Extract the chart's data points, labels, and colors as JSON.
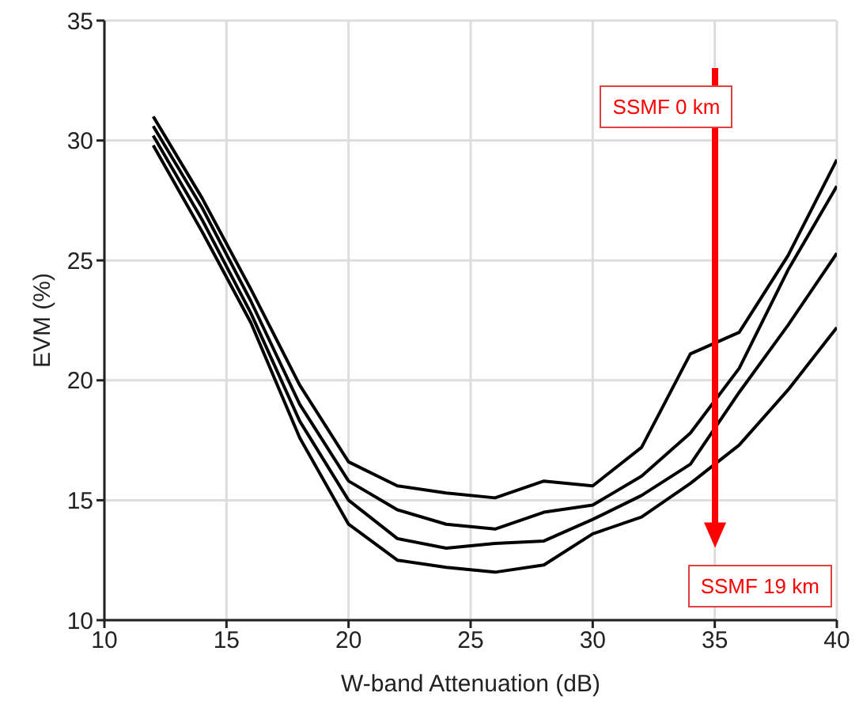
{
  "chart_data": {
    "type": "line",
    "xlabel": "W-band Attenuation (dB)",
    "ylabel": "EVM (%)",
    "x": [
      12,
      14,
      16,
      18,
      20,
      22,
      24,
      26,
      28,
      30,
      32,
      34,
      36,
      38,
      40
    ],
    "series": [
      {
        "color": "#000000",
        "values": [
          31.0,
          27.6,
          23.8,
          19.8,
          16.6,
          15.6,
          15.3,
          15.1,
          15.8,
          15.6,
          17.2,
          21.1,
          22.0,
          25.2,
          29.2
        ]
      },
      {
        "color": "#000000",
        "values": [
          30.6,
          27.2,
          23.3,
          19.0,
          15.8,
          14.6,
          14.0,
          13.8,
          14.5,
          14.8,
          16.0,
          17.8,
          20.5,
          24.6,
          28.1
        ]
      },
      {
        "color": "#000000",
        "values": [
          30.2,
          26.7,
          22.8,
          18.3,
          15.0,
          13.4,
          13.0,
          13.2,
          13.3,
          14.2,
          15.2,
          16.5,
          19.5,
          22.3,
          25.3
        ]
      },
      {
        "color": "#000000",
        "values": [
          29.8,
          26.2,
          22.4,
          17.6,
          14.0,
          12.5,
          12.2,
          12.0,
          12.3,
          13.6,
          14.3,
          15.7,
          17.3,
          19.6,
          22.2
        ]
      }
    ],
    "xlim": [
      10,
      40
    ],
    "xticks": [
      10,
      15,
      20,
      25,
      30,
      35,
      40
    ],
    "ylim": [
      10,
      35
    ],
    "yticks": [
      10,
      15,
      20,
      25,
      30,
      35
    ],
    "grid": true,
    "marker": "none",
    "line_style": "solid",
    "annotations": [
      "SSMF 0 km",
      "SSMF 19 km"
    ]
  }
}
